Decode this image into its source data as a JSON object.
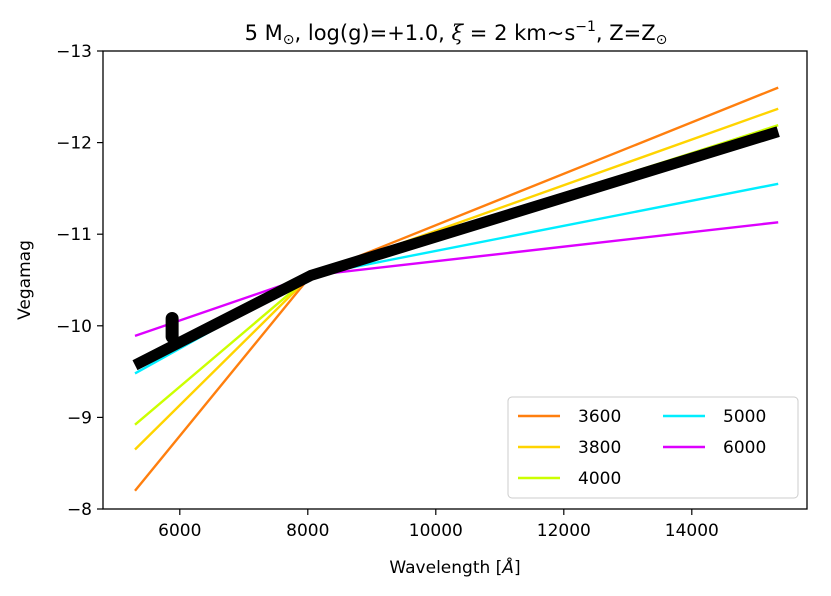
{
  "chart_data": {
    "type": "line",
    "title_parts": {
      "prefix": "5 M",
      "sun1": "⊙",
      "mid": ", log(g)=+1.0, ",
      "xi": "ξ",
      "eq": " = 2 km~s",
      "sup": "−1",
      "tail": ", Z=Z",
      "sun2": "⊙"
    },
    "xlabel_parts": {
      "prefix": "Wavelength [",
      "unit": "Å",
      "suffix": "]"
    },
    "ylabel": "Vegamag",
    "xlim": [
      4800,
      15800
    ],
    "ylim": [
      -8,
      -13
    ],
    "y_inverted": true,
    "xticks": [
      6000,
      8000,
      10000,
      12000,
      14000
    ],
    "xtick_labels": [
      "6000",
      "8000",
      "10000",
      "12000",
      "14000"
    ],
    "yticks": [
      -13,
      -12,
      -11,
      -10,
      -9,
      -8
    ],
    "ytick_labels": [
      "−13",
      "−12",
      "−11",
      "−10",
      "−9",
      "−8"
    ],
    "legend_loc": "lower right",
    "legend_ncol": 2,
    "series": [
      {
        "name": "3600",
        "color": "#ff7f0e",
        "x": [
          5300,
          8050,
          15350
        ],
        "y": [
          -8.2,
          -10.55,
          -12.6
        ]
      },
      {
        "name": "3800",
        "color": "#ffd400",
        "x": [
          5300,
          8050,
          15350
        ],
        "y": [
          -8.65,
          -10.55,
          -12.37
        ]
      },
      {
        "name": "4000",
        "color": "#ccff00",
        "x": [
          5300,
          8050,
          15350
        ],
        "y": [
          -8.92,
          -10.55,
          -12.19
        ]
      },
      {
        "name": "5000",
        "color": "#00eeff",
        "x": [
          5300,
          8050,
          15350
        ],
        "y": [
          -9.48,
          -10.55,
          -11.55
        ]
      },
      {
        "name": "6000",
        "color": "#dd00ff",
        "x": [
          5300,
          8050,
          15350
        ],
        "y": [
          -9.89,
          -10.55,
          -11.13
        ]
      }
    ],
    "thick_series": {
      "color": "#000000",
      "x": [
        5300,
        8050,
        15350
      ],
      "y": [
        -9.57,
        -10.55,
        -12.12
      ]
    },
    "marker": {
      "color": "#000000",
      "x": 5880,
      "y_from": -9.88,
      "y_to": -10.08
    }
  }
}
